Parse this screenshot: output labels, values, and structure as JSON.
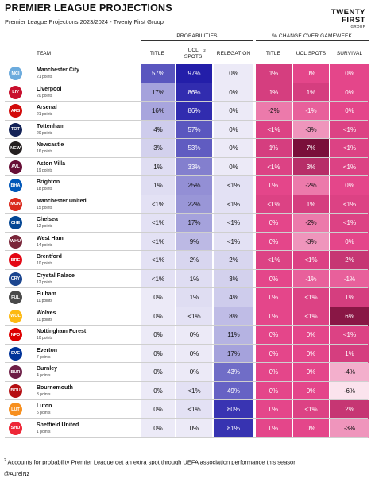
{
  "header": {
    "title": "PREMIER LEAGUE PROJECTIONS",
    "subtitle": "Premier League Projections 2023/2024 - Twenty First Group",
    "logo_line1": "TWENTY",
    "logo_line2": "FIRST",
    "logo_line3": "GROUP"
  },
  "groups": {
    "probabilities": "PROBABILITIES",
    "change": "% CHANGE OVER GAMEWEEK"
  },
  "columns": {
    "team": "TEAM",
    "title": "TITLE",
    "ucl": "UCL SPOTS",
    "ucl_note": "2",
    "relegation": "RELEGATION",
    "ch_title": "TITLE",
    "ch_ucl": "UCL SPOTS",
    "ch_survival": "SURVIVAL"
  },
  "footer": {
    "note_mark": "2",
    "note": "Accounts for probability Premier League get an extra spot through UEFA association performance this season",
    "handle": "@AurelNz"
  },
  "colors": {
    "prob_high": "#1f1aa8",
    "prob_low": "#eceaf7",
    "change_pos": "#7a0f3a",
    "change_zero": "#e4468a",
    "change_neg": "#ffffff"
  },
  "chart_data": {
    "type": "table",
    "title": "PREMIER LEAGUE PROJECTIONS",
    "subtitle": "Premier League Projections 2023/2024 - Twenty First Group",
    "columns": [
      "TEAM",
      "TITLE",
      "UCL SPOTS",
      "RELEGATION",
      "TITLE",
      "UCL SPOTS",
      "SURVIVAL"
    ],
    "rows": [
      {
        "team": "Manchester City",
        "points": "21 points",
        "abbr": "MCI",
        "crest": "#6cabdd",
        "title": "57%",
        "ucl": "97%",
        "rel": "0%",
        "ch_title": "1%",
        "ch_ucl": "0%",
        "ch_surv": "0%",
        "v": [
          57,
          97,
          0
        ],
        "c": [
          1,
          0,
          0
        ]
      },
      {
        "team": "Liverpool",
        "points": "20 points",
        "abbr": "LIV",
        "crest": "#c8102e",
        "title": "17%",
        "ucl": "86%",
        "rel": "0%",
        "ch_title": "1%",
        "ch_ucl": "1%",
        "ch_surv": "0%",
        "v": [
          17,
          86,
          0
        ],
        "c": [
          1,
          1,
          0
        ]
      },
      {
        "team": "Arsenal",
        "points": "21 points",
        "abbr": "ARS",
        "crest": "#d20a0a",
        "title": "16%",
        "ucl": "86%",
        "rel": "0%",
        "ch_title": "-2%",
        "ch_ucl": "-1%",
        "ch_surv": "0%",
        "v": [
          16,
          86,
          0
        ],
        "c": [
          -2,
          -1,
          0
        ]
      },
      {
        "team": "Tottenham",
        "points": "20 points",
        "abbr": "TOT",
        "crest": "#132257",
        "title": "4%",
        "ucl": "57%",
        "rel": "0%",
        "ch_title": "<1%",
        "ch_ucl": "-3%",
        "ch_surv": "<1%",
        "v": [
          4,
          57,
          0
        ],
        "c": [
          0.5,
          -3,
          0.5
        ]
      },
      {
        "team": "Newcastle",
        "points": "16 points",
        "abbr": "NEW",
        "crest": "#241f20",
        "title": "3%",
        "ucl": "53%",
        "rel": "0%",
        "ch_title": "1%",
        "ch_ucl": "7%",
        "ch_surv": "<1%",
        "v": [
          3,
          53,
          0
        ],
        "c": [
          1,
          7,
          0.5
        ]
      },
      {
        "team": "Aston Villa",
        "points": "19 points",
        "abbr": "AVL",
        "crest": "#670e36",
        "title": "1%",
        "ucl": "33%",
        "rel": "0%",
        "ch_title": "<1%",
        "ch_ucl": "3%",
        "ch_surv": "<1%",
        "v": [
          1,
          33,
          0
        ],
        "c": [
          0.5,
          3,
          0.5
        ]
      },
      {
        "team": "Brighton",
        "points": "18 points",
        "abbr": "BHA",
        "crest": "#0057b8",
        "title": "1%",
        "ucl": "25%",
        "rel": "<1%",
        "ch_title": "0%",
        "ch_ucl": "-2%",
        "ch_surv": "0%",
        "v": [
          1,
          25,
          0.5
        ],
        "c": [
          0,
          -2,
          0
        ]
      },
      {
        "team": "Manchester United",
        "points": "15 points",
        "abbr": "MUN",
        "crest": "#da291c",
        "title": "<1%",
        "ucl": "22%",
        "rel": "<1%",
        "ch_title": "<1%",
        "ch_ucl": "1%",
        "ch_surv": "<1%",
        "v": [
          0.5,
          22,
          0.5
        ],
        "c": [
          0.5,
          1,
          0.5
        ]
      },
      {
        "team": "Chelsea",
        "points": "12 points",
        "abbr": "CHE",
        "crest": "#034694",
        "title": "<1%",
        "ucl": "17%",
        "rel": "<1%",
        "ch_title": "0%",
        "ch_ucl": "-2%",
        "ch_surv": "<1%",
        "v": [
          0.5,
          17,
          0.5
        ],
        "c": [
          0,
          -2,
          0.5
        ]
      },
      {
        "team": "West Ham",
        "points": "14 points",
        "abbr": "WHU",
        "crest": "#7a263a",
        "title": "<1%",
        "ucl": "9%",
        "rel": "<1%",
        "ch_title": "0%",
        "ch_ucl": "-3%",
        "ch_surv": "0%",
        "v": [
          0.5,
          9,
          0.5
        ],
        "c": [
          0,
          -3,
          0
        ]
      },
      {
        "team": "Brentford",
        "points": "10 points",
        "abbr": "BRE",
        "crest": "#e30613",
        "title": "<1%",
        "ucl": "2%",
        "rel": "2%",
        "ch_title": "<1%",
        "ch_ucl": "<1%",
        "ch_surv": "2%",
        "v": [
          0.5,
          2,
          2
        ],
        "c": [
          0.5,
          0.5,
          2
        ]
      },
      {
        "team": "Crystal Palace",
        "points": "12 points",
        "abbr": "CRY",
        "crest": "#1b458f",
        "title": "<1%",
        "ucl": "1%",
        "rel": "3%",
        "ch_title": "0%",
        "ch_ucl": "-1%",
        "ch_surv": "-1%",
        "v": [
          0.5,
          1,
          3
        ],
        "c": [
          0,
          -1,
          -1
        ]
      },
      {
        "team": "Fulham",
        "points": "11 points",
        "abbr": "FUL",
        "crest": "#4a4a4a",
        "title": "0%",
        "ucl": "1%",
        "rel": "4%",
        "ch_title": "0%",
        "ch_ucl": "<1%",
        "ch_surv": "1%",
        "v": [
          0,
          1,
          4
        ],
        "c": [
          0,
          0.5,
          1
        ]
      },
      {
        "team": "Wolves",
        "points": "11 points",
        "abbr": "WOL",
        "crest": "#fdb913",
        "title": "0%",
        "ucl": "<1%",
        "rel": "8%",
        "ch_title": "0%",
        "ch_ucl": "<1%",
        "ch_surv": "6%",
        "v": [
          0,
          0.5,
          8
        ],
        "c": [
          0,
          0.5,
          6
        ]
      },
      {
        "team": "Nottingham Forest",
        "points": "10 points",
        "abbr": "NFO",
        "crest": "#dd0000",
        "title": "0%",
        "ucl": "0%",
        "rel": "11%",
        "ch_title": "0%",
        "ch_ucl": "0%",
        "ch_surv": "<1%",
        "v": [
          0,
          0,
          11
        ],
        "c": [
          0,
          0,
          0.5
        ]
      },
      {
        "team": "Everton",
        "points": "7 points",
        "abbr": "EVE",
        "crest": "#003399",
        "title": "0%",
        "ucl": "0%",
        "rel": "17%",
        "ch_title": "0%",
        "ch_ucl": "0%",
        "ch_surv": "1%",
        "v": [
          0,
          0,
          17
        ],
        "c": [
          0,
          0,
          1
        ]
      },
      {
        "team": "Burnley",
        "points": "4 points",
        "abbr": "BUR",
        "crest": "#6c1d45",
        "title": "0%",
        "ucl": "0%",
        "rel": "43%",
        "ch_title": "0%",
        "ch_ucl": "0%",
        "ch_surv": "-4%",
        "v": [
          0,
          0,
          43
        ],
        "c": [
          0,
          0,
          -4
        ]
      },
      {
        "team": "Bournemouth",
        "points": "3 points",
        "abbr": "BOU",
        "crest": "#b50e12",
        "title": "0%",
        "ucl": "<1%",
        "rel": "49%",
        "ch_title": "0%",
        "ch_ucl": "0%",
        "ch_surv": "-6%",
        "v": [
          0,
          0.5,
          49
        ],
        "c": [
          0,
          0,
          -6
        ]
      },
      {
        "team": "Luton",
        "points": "5 points",
        "abbr": "LUT",
        "crest": "#f78f1e",
        "title": "0%",
        "ucl": "<1%",
        "rel": "80%",
        "ch_title": "0%",
        "ch_ucl": "<1%",
        "ch_surv": "2%",
        "v": [
          0,
          0.5,
          80
        ],
        "c": [
          0,
          0.5,
          2
        ]
      },
      {
        "team": "Sheffield United",
        "points": "1 points",
        "abbr": "SHU",
        "crest": "#ee2737",
        "title": "0%",
        "ucl": "0%",
        "rel": "81%",
        "ch_title": "0%",
        "ch_ucl": "0%",
        "ch_surv": "-3%",
        "v": [
          0,
          0,
          81
        ],
        "c": [
          0,
          0,
          -3
        ]
      }
    ]
  }
}
